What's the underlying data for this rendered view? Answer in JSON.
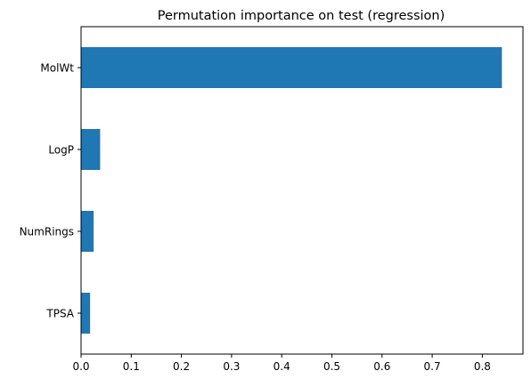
{
  "chart_data": {
    "type": "bar",
    "orientation": "horizontal",
    "title": "Permutation importance on test (regression)",
    "xlabel": "",
    "ylabel": "",
    "categories": [
      "MolWt",
      "LogP",
      "NumRings",
      "TPSA"
    ],
    "values": [
      0.839,
      0.038,
      0.025,
      0.018
    ],
    "xlim": [
      0,
      0.881
    ],
    "xticks": [
      0.0,
      0.1,
      0.2,
      0.3,
      0.4,
      0.5,
      0.6,
      0.7,
      0.8
    ],
    "xtick_labels": [
      "0.0",
      "0.1",
      "0.2",
      "0.3",
      "0.4",
      "0.5",
      "0.6",
      "0.7",
      "0.8"
    ],
    "grid": false,
    "legend": "none",
    "bar_color": "#1f77b4"
  }
}
